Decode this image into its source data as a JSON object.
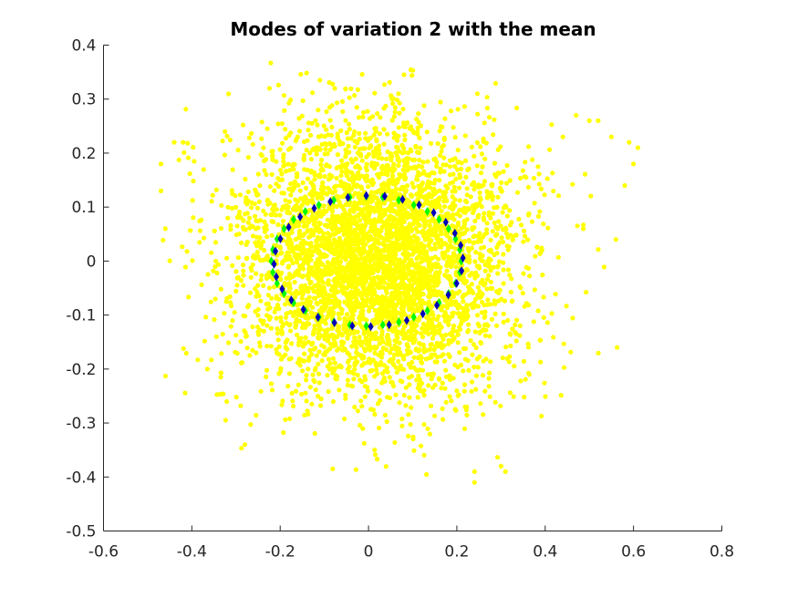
{
  "chart_data": {
    "type": "scatter",
    "title": "Modes of variation 2 with the mean",
    "xlabel": "",
    "ylabel": "",
    "xlim": [
      -0.6,
      0.8
    ],
    "ylim": [
      -0.5,
      0.4
    ],
    "xticks": [
      -0.6,
      -0.4,
      -0.2,
      0,
      0.2,
      0.4,
      0.6,
      0.8
    ],
    "xtick_labels": [
      "-0.6",
      "-0.4",
      "-0.2",
      "0",
      "0.2",
      "0.4",
      "0.6",
      "0.8"
    ],
    "yticks": [
      -0.5,
      -0.4,
      -0.3,
      -0.2,
      -0.1,
      0,
      0.1,
      0.2,
      0.3,
      0.4
    ],
    "ytick_labels": [
      "-0.5",
      "-0.4",
      "-0.3",
      "-0.2",
      "-0.1",
      "0",
      "0.1",
      "0.2",
      "0.3",
      "0.4"
    ],
    "grid": false,
    "legend": "none",
    "series": [
      {
        "marker": "point",
        "color": "#ffff00",
        "cloud": {
          "count": 4500,
          "x_mean": 0.02,
          "y_mean": 0.0,
          "x_sd": 0.16,
          "y_sd": 0.125,
          "x_min": -0.48,
          "x_max": 0.62,
          "y_min": -0.42,
          "y_max": 0.38
        },
        "outliers": [
          {
            "x": -0.47,
            "y": 0.18
          },
          {
            "x": -0.47,
            "y": 0.13
          },
          {
            "x": -0.46,
            "y": 0.06
          },
          {
            "x": -0.44,
            "y": 0.22
          },
          {
            "x": -0.42,
            "y": 0.22
          },
          {
            "x": -0.28,
            "y": -0.34
          },
          {
            "x": 0.24,
            "y": -0.41
          },
          {
            "x": 0.24,
            "y": -0.39
          },
          {
            "x": 0.31,
            "y": -0.39
          },
          {
            "x": 0.3,
            "y": -0.38
          },
          {
            "x": 0.5,
            "y": 0.26
          },
          {
            "x": 0.52,
            "y": 0.26
          },
          {
            "x": 0.55,
            "y": 0.23
          },
          {
            "x": 0.56,
            "y": 0.04
          },
          {
            "x": 0.58,
            "y": 0.14
          },
          {
            "x": 0.59,
            "y": 0.22
          },
          {
            "x": 0.6,
            "y": 0.18
          },
          {
            "x": 0.61,
            "y": 0.21
          },
          {
            "x": 0.47,
            "y": 0.27
          },
          {
            "x": 0.44,
            "y": 0.23
          }
        ]
      },
      {
        "marker": "diamond",
        "color": "#00ff00",
        "ellipse": {
          "cx": -0.005,
          "cy": 0.0,
          "rx": 0.215,
          "ry": 0.12,
          "points": 36,
          "rotation_deg": 0
        }
      },
      {
        "marker": "diamond",
        "color": "#0000bb",
        "ellipse": {
          "cx": 0.0,
          "cy": 0.0,
          "rx": 0.215,
          "ry": 0.122,
          "points": 32,
          "rotation_deg": 6
        }
      }
    ]
  }
}
